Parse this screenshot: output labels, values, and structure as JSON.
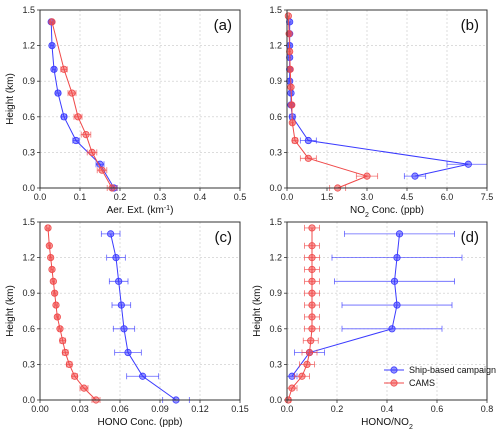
{
  "colors": {
    "ship": "#3b3bff",
    "cams": "#f04a4a",
    "grid": "#c8c8c8",
    "axis": "#333333"
  },
  "legend": {
    "placement": "bottom-right of panel (d)",
    "entries": [
      "Ship-based campaign",
      "CAMS"
    ]
  },
  "chart_data": [
    {
      "type": "line",
      "panel_label": "(a)",
      "xlabel_parts": [
        "Aer. Ext. (km",
        "-1",
        ")"
      ],
      "ylabel": "Height (km)",
      "xlim": [
        0,
        0.5
      ],
      "ylim": [
        0,
        1.5
      ],
      "xticks": [
        "0.0",
        "0.1",
        "0.2",
        "0.3",
        "0.4",
        "0.5"
      ],
      "yticks": [
        "0.0",
        "0.3",
        "0.6",
        "0.9",
        "1.2",
        "1.5"
      ],
      "grid": true,
      "series": [
        {
          "name": "Ship-based campaign",
          "color": "#3b3bff",
          "x": [
            0.185,
            0.15,
            0.09,
            0.06,
            0.045,
            0.035,
            0.03,
            0.028
          ],
          "y": [
            0.0,
            0.2,
            0.4,
            0.6,
            0.8,
            1.0,
            1.2,
            1.4
          ],
          "xerr": [
            0.008,
            0.01,
            0.008,
            0.006,
            0.005,
            0.004,
            0.004,
            0.004
          ]
        },
        {
          "name": "CAMS",
          "color": "#f04a4a",
          "x": [
            0.18,
            0.155,
            0.13,
            0.115,
            0.095,
            0.08,
            0.06,
            0.03
          ],
          "y": [
            0.0,
            0.15,
            0.3,
            0.45,
            0.6,
            0.8,
            1.0,
            1.4
          ],
          "xerr": [
            0.012,
            0.012,
            0.012,
            0.012,
            0.01,
            0.01,
            0.008,
            0.004
          ]
        }
      ]
    },
    {
      "type": "line",
      "panel_label": "(b)",
      "xlabel_parts": [
        "NO",
        "2",
        " Conc. (ppb)"
      ],
      "ylabel": "",
      "xlim": [
        0,
        7.5
      ],
      "ylim": [
        0,
        1.5
      ],
      "xticks": [
        "0.0",
        "1.5",
        "3.0",
        "4.5",
        "6.0",
        "7.5"
      ],
      "yticks": [
        "0.0",
        "0.3",
        "0.6",
        "0.9",
        "1.2",
        "1.5"
      ],
      "grid": true,
      "series": [
        {
          "name": "Ship-based campaign",
          "color": "#3b3bff",
          "x": [
            4.8,
            6.8,
            0.8,
            0.2,
            0.15,
            0.15,
            0.1,
            0.1,
            0.1,
            0.1,
            0.1,
            0.1
          ],
          "y": [
            0.1,
            0.2,
            0.4,
            0.6,
            0.7,
            0.8,
            0.9,
            1.0,
            1.1,
            1.2,
            1.3,
            1.4
          ],
          "xerr": [
            0.4,
            0.8,
            0.3,
            0.1,
            0.05,
            0.05,
            0.05,
            0.05,
            0.05,
            0.05,
            0.05,
            0.05
          ]
        },
        {
          "name": "CAMS",
          "color": "#f04a4a",
          "x": [
            1.9,
            3.0,
            0.8,
            0.3,
            0.2,
            0.18,
            0.15,
            0.12,
            0.1,
            0.08,
            0.05
          ],
          "y": [
            0.0,
            0.1,
            0.25,
            0.4,
            0.55,
            0.7,
            0.85,
            1.0,
            1.15,
            1.3,
            1.45
          ],
          "xerr": [
            0.3,
            0.4,
            0.3,
            0.1,
            0.06,
            0.05,
            0.05,
            0.05,
            0.05,
            0.05,
            0.05
          ]
        }
      ]
    },
    {
      "type": "line",
      "panel_label": "(c)",
      "xlabel_parts": [
        "HONO Conc. (ppb)"
      ],
      "ylabel": "Height (km)",
      "xlim": [
        0,
        0.15
      ],
      "ylim": [
        0,
        1.5
      ],
      "xticks": [
        "0.00",
        "0.03",
        "0.06",
        "0.09",
        "0.12",
        "0.15"
      ],
      "yticks": [
        "0.0",
        "0.3",
        "0.6",
        "0.9",
        "1.2",
        "1.5"
      ],
      "grid": true,
      "series": [
        {
          "name": "Ship-based campaign",
          "color": "#3b3bff",
          "x": [
            0.102,
            0.077,
            0.066,
            0.063,
            0.061,
            0.059,
            0.057,
            0.053
          ],
          "y": [
            0.0,
            0.2,
            0.4,
            0.6,
            0.8,
            1.0,
            1.2,
            1.4
          ],
          "xerr": [
            0.01,
            0.012,
            0.01,
            0.008,
            0.007,
            0.007,
            0.007,
            0.007
          ]
        },
        {
          "name": "CAMS",
          "color": "#f04a4a",
          "x": [
            0.042,
            0.033,
            0.026,
            0.022,
            0.019,
            0.017,
            0.015,
            0.013,
            0.012,
            0.011,
            0.01,
            0.009,
            0.008,
            0.007,
            0.006
          ],
          "y": [
            0.0,
            0.1,
            0.2,
            0.3,
            0.4,
            0.5,
            0.6,
            0.7,
            0.8,
            0.9,
            1.0,
            1.1,
            1.2,
            1.3,
            1.45
          ],
          "xerr": [
            0.003,
            0.003,
            0.002,
            0.002,
            0.002,
            0.002,
            0.001,
            0.001,
            0.001,
            0.001,
            0.001,
            0.001,
            0.001,
            0.001,
            0.001
          ]
        }
      ]
    },
    {
      "type": "line",
      "panel_label": "(d)",
      "xlabel_parts": [
        "HONO/NO",
        "2",
        ""
      ],
      "ylabel": "Height (km)",
      "xlim": [
        0,
        0.8
      ],
      "ylim": [
        0,
        1.5
      ],
      "xticks": [
        "0.0",
        "0.2",
        "0.4",
        "0.6",
        "0.8"
      ],
      "yticks": [
        "0.0",
        "0.3",
        "0.6",
        "0.9",
        "1.2",
        "1.5"
      ],
      "grid": true,
      "series": [
        {
          "name": "Ship-based campaign",
          "color": "#3b3bff",
          "x": [
            0.02,
            0.09,
            0.42,
            0.44,
            0.43,
            0.44,
            0.45
          ],
          "y": [
            0.2,
            0.4,
            0.6,
            0.8,
            1.0,
            1.2,
            1.4
          ],
          "xerr": [
            0.02,
            0.06,
            0.2,
            0.22,
            0.24,
            0.26,
            0.22
          ]
        },
        {
          "name": "CAMS",
          "color": "#f04a4a",
          "x": [
            0.005,
            0.02,
            0.06,
            0.08,
            0.09,
            0.095,
            0.1,
            0.1,
            0.1,
            0.1,
            0.1,
            0.1,
            0.1,
            0.1,
            0.1
          ],
          "y": [
            0.0,
            0.1,
            0.2,
            0.3,
            0.4,
            0.5,
            0.6,
            0.7,
            0.8,
            0.9,
            1.0,
            1.1,
            1.2,
            1.3,
            1.45
          ],
          "xerr": [
            0.01,
            0.02,
            0.03,
            0.03,
            0.03,
            0.03,
            0.03,
            0.03,
            0.03,
            0.03,
            0.03,
            0.03,
            0.03,
            0.03,
            0.03
          ]
        }
      ]
    }
  ]
}
